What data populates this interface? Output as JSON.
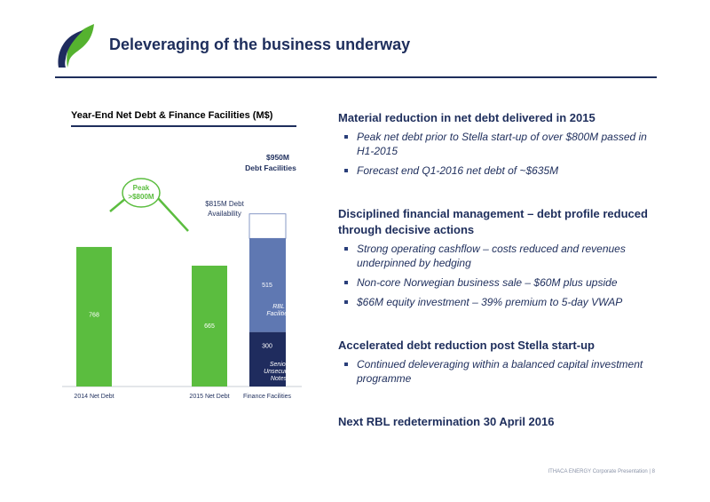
{
  "header": {
    "title": "Deleveraging of the business underway"
  },
  "chart": {
    "title": "Year-End Net Debt & Finance Facilities (M$)",
    "facilities_label_line1": "$950M",
    "facilities_label_line2": "Debt Facilities",
    "availability_line1": "$815M Debt",
    "availability_line2": "Availability",
    "peak_line1": "Peak",
    "peak_line2": ">$800M",
    "rbl_line1": "RBL",
    "rbl_line2": "Facilities",
    "snotes_line1": "Senior",
    "snotes_line2": "Unsecured",
    "snotes_line3": "Notes"
  },
  "chart_data": {
    "type": "bar",
    "categories": [
      "2014 Net Debt",
      "2015 Net Debt",
      "Finance Facilities"
    ],
    "series": [
      {
        "name": "Net Debt",
        "values": [
          768,
          665,
          null
        ]
      },
      {
        "name": "Senior Unsecured Notes",
        "values": [
          null,
          null,
          300
        ]
      },
      {
        "name": "RBL Facilities",
        "values": [
          null,
          null,
          515
        ]
      },
      {
        "name": "",
        "values": [
          null,
          null,
          135
        ]
      }
    ],
    "value_labels": [
      "768",
      "665",
      "300",
      "515"
    ],
    "total_facilities": 950,
    "ylim": [
      0,
      1000
    ],
    "colors": {
      "net_debt": "#5bbd3f",
      "rbl": "#5f78b2",
      "senior_notes": "#1f2c5e",
      "availability_border": "#6a80b8",
      "peak_arrow": "#5bbd3f"
    },
    "title": "Year-End Net Debt & Finance Facilities (M$)",
    "xlabel": "",
    "ylabel": ""
  },
  "right": {
    "sections": [
      {
        "heading": "Material reduction in net debt delivered in 2015",
        "bullets": [
          "Peak net debt prior to Stella start-up of over $800M passed in H1-2015",
          "Forecast end Q1-2016 net debt of ~$635M"
        ]
      },
      {
        "heading": "Disciplined financial management – debt profile reduced through decisive actions",
        "bullets": [
          "Strong operating cashflow – costs reduced and revenues underpinned by hedging",
          "Non-core Norwegian business sale – $60M plus upside",
          "$66M equity investment – 39% premium to 5-day VWAP"
        ]
      },
      {
        "heading": "Accelerated debt reduction post Stella start-up",
        "bullets": [
          "Continued deleveraging within a balanced capital investment programme"
        ]
      },
      {
        "heading": "Next RBL redetermination 30 April 2016",
        "bullets": []
      }
    ]
  },
  "footer": {
    "text": "ITHACA ENERGY Corporate Presentation  |  8"
  },
  "colors": {
    "navy": "#1e2e5c",
    "green": "#5bbd3f"
  },
  "icons": {
    "logo": "leaf-logo-icon"
  }
}
